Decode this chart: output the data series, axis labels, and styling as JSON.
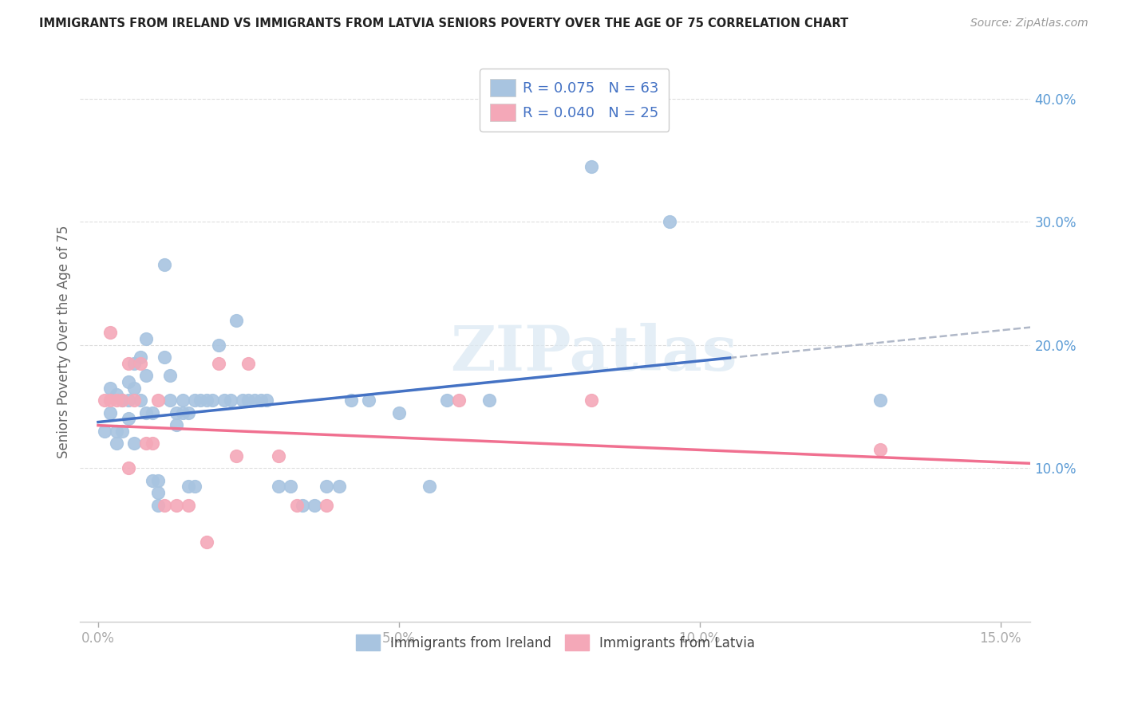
{
  "title": "IMMIGRANTS FROM IRELAND VS IMMIGRANTS FROM LATVIA SENIORS POVERTY OVER THE AGE OF 75 CORRELATION CHART",
  "source": "Source: ZipAtlas.com",
  "ylabel": "Seniors Poverty Over the Age of 75",
  "ireland_R": 0.075,
  "ireland_N": 63,
  "latvia_R": 0.04,
  "latvia_N": 25,
  "ireland_color": "#a8c4e0",
  "latvia_color": "#f4a8b8",
  "ireland_line_color": "#4472c4",
  "latvia_line_color": "#f07090",
  "dash_color": "#b0b8c8",
  "watermark": "ZIPatlas",
  "xlim": [
    -0.3,
    15.5
  ],
  "ylim": [
    -2.5,
    43.0
  ],
  "xticks": [
    0.0,
    5.0,
    10.0,
    15.0
  ],
  "xtick_labels": [
    "0.0%",
    "5.0%",
    "10.0%",
    "15.0%"
  ],
  "yticks_right": [
    10.0,
    20.0,
    30.0,
    40.0
  ],
  "ytick_labels_right": [
    "10.0%",
    "20.0%",
    "30.0%",
    "40.0%"
  ],
  "ireland_x": [
    0.1,
    0.2,
    0.2,
    0.3,
    0.3,
    0.3,
    0.4,
    0.4,
    0.5,
    0.5,
    0.5,
    0.6,
    0.6,
    0.6,
    0.7,
    0.7,
    0.8,
    0.8,
    0.8,
    0.9,
    0.9,
    1.0,
    1.0,
    1.0,
    1.1,
    1.1,
    1.2,
    1.2,
    1.3,
    1.3,
    1.4,
    1.4,
    1.5,
    1.5,
    1.6,
    1.6,
    1.7,
    1.8,
    1.9,
    2.0,
    2.1,
    2.2,
    2.3,
    2.4,
    2.5,
    2.6,
    2.7,
    2.8,
    3.0,
    3.2,
    3.4,
    3.6,
    3.8,
    4.0,
    4.2,
    4.5,
    5.0,
    5.5,
    5.8,
    6.5,
    8.2,
    9.5,
    13.0
  ],
  "ireland_y": [
    13.0,
    14.5,
    16.5,
    16.0,
    13.0,
    12.0,
    15.5,
    13.0,
    17.0,
    15.5,
    14.0,
    18.5,
    16.5,
    12.0,
    19.0,
    15.5,
    20.5,
    17.5,
    14.5,
    14.5,
    9.0,
    9.0,
    7.0,
    8.0,
    26.5,
    19.0,
    17.5,
    15.5,
    14.5,
    13.5,
    15.5,
    14.5,
    14.5,
    8.5,
    15.5,
    8.5,
    15.5,
    15.5,
    15.5,
    20.0,
    15.5,
    15.5,
    22.0,
    15.5,
    15.5,
    15.5,
    15.5,
    15.5,
    8.5,
    8.5,
    7.0,
    7.0,
    8.5,
    8.5,
    15.5,
    15.5,
    14.5,
    8.5,
    15.5,
    15.5,
    34.5,
    30.0,
    15.5
  ],
  "latvia_x": [
    0.1,
    0.2,
    0.2,
    0.3,
    0.4,
    0.5,
    0.5,
    0.6,
    0.7,
    0.8,
    0.9,
    1.0,
    1.1,
    1.3,
    1.5,
    1.8,
    2.0,
    2.3,
    2.5,
    3.0,
    3.3,
    3.8,
    6.0,
    8.2,
    13.0
  ],
  "latvia_y": [
    15.5,
    21.0,
    15.5,
    15.5,
    15.5,
    18.5,
    10.0,
    15.5,
    18.5,
    12.0,
    12.0,
    15.5,
    7.0,
    7.0,
    7.0,
    4.0,
    18.5,
    11.0,
    18.5,
    11.0,
    7.0,
    7.0,
    15.5,
    15.5,
    11.5
  ]
}
